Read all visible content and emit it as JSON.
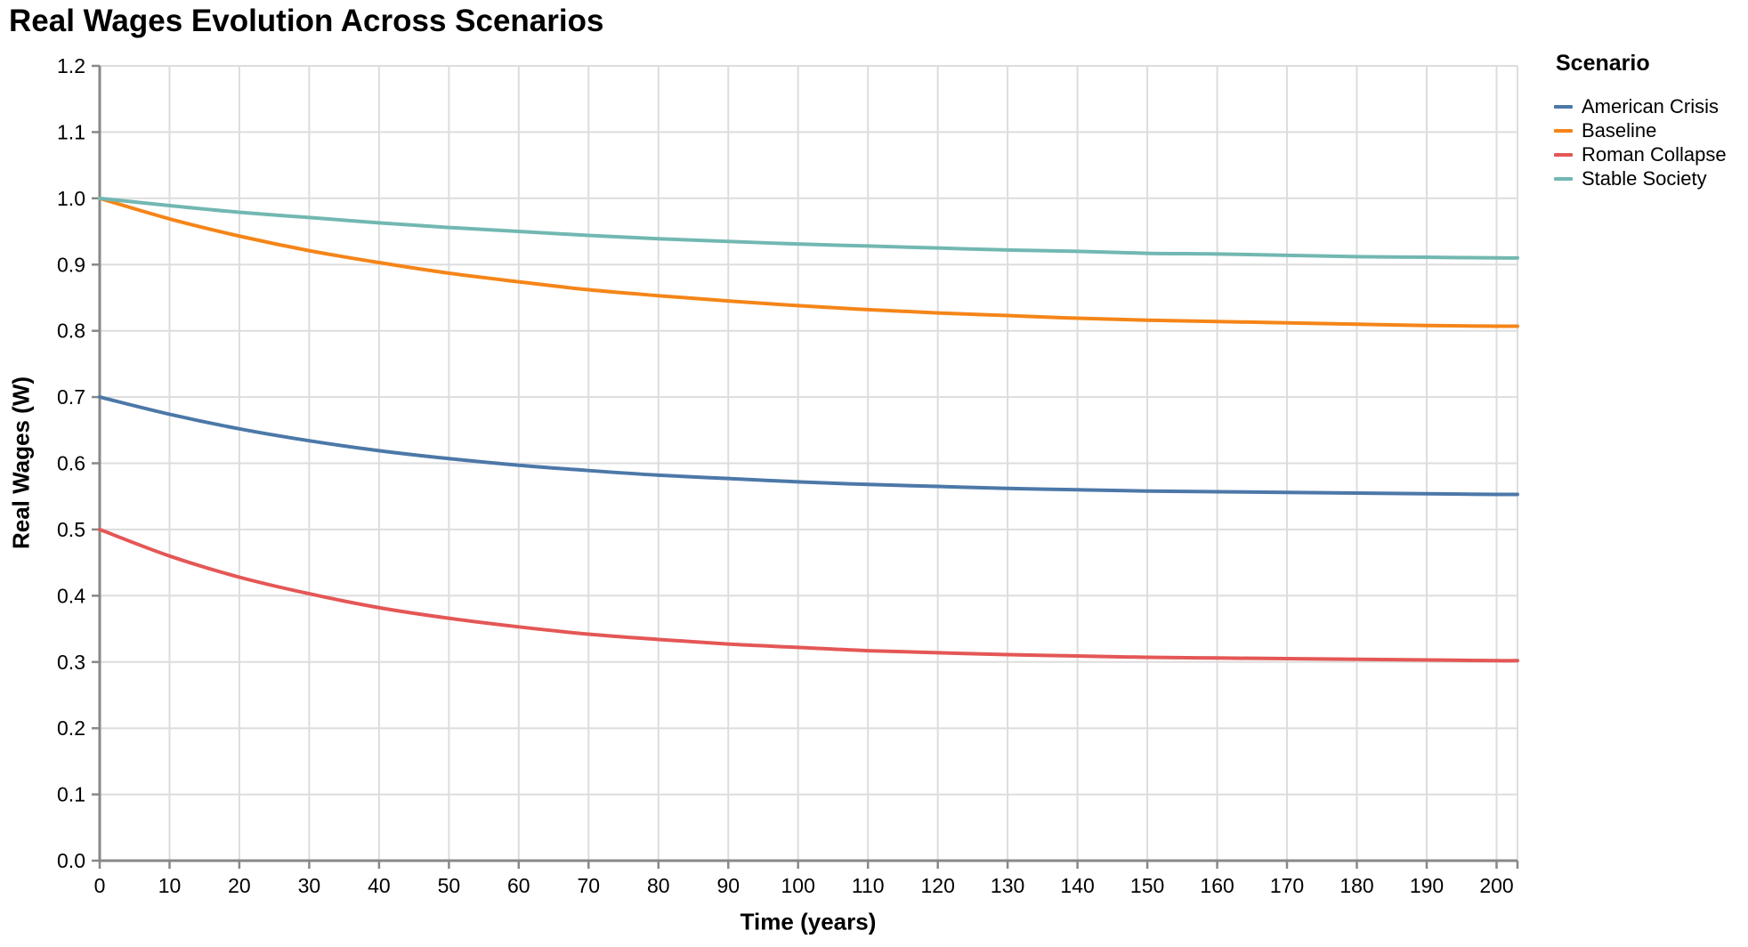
{
  "chart_data": {
    "type": "line",
    "title": "Real Wages Evolution Across Scenarios",
    "xlabel": "Time (years)",
    "ylabel": "Real Wages (W)",
    "legend_title": "Scenario",
    "legend_position": "right-top",
    "grid": true,
    "xlim": [
      0,
      203
    ],
    "ylim": [
      0,
      1.2
    ],
    "x_ticks": [
      0,
      10,
      20,
      30,
      40,
      50,
      60,
      70,
      80,
      90,
      100,
      110,
      120,
      130,
      140,
      150,
      160,
      170,
      180,
      190,
      200
    ],
    "y_ticks": [
      0.0,
      0.1,
      0.2,
      0.3,
      0.4,
      0.5,
      0.6,
      0.7,
      0.8,
      0.9,
      1.0,
      1.1,
      1.2
    ],
    "x": [
      0,
      10,
      20,
      30,
      40,
      50,
      60,
      70,
      80,
      90,
      100,
      110,
      120,
      130,
      140,
      150,
      160,
      170,
      180,
      190,
      200
    ],
    "series": [
      {
        "name": "American Crisis",
        "color": "#4c78a8",
        "values": [
          0.7,
          0.674,
          0.652,
          0.634,
          0.619,
          0.607,
          0.597,
          0.589,
          0.582,
          0.577,
          0.572,
          0.568,
          0.565,
          0.562,
          0.56,
          0.558,
          0.557,
          0.556,
          0.555,
          0.554,
          0.553
        ]
      },
      {
        "name": "Baseline",
        "color": "#f58518",
        "values": [
          1.0,
          0.969,
          0.943,
          0.921,
          0.903,
          0.887,
          0.874,
          0.862,
          0.853,
          0.845,
          0.838,
          0.832,
          0.827,
          0.823,
          0.819,
          0.816,
          0.814,
          0.812,
          0.81,
          0.808,
          0.807
        ]
      },
      {
        "name": "Roman Collapse",
        "color": "#e45756",
        "values": [
          0.5,
          0.46,
          0.428,
          0.403,
          0.382,
          0.366,
          0.353,
          0.342,
          0.334,
          0.327,
          0.322,
          0.317,
          0.314,
          0.311,
          0.309,
          0.307,
          0.306,
          0.305,
          0.304,
          0.303,
          0.302
        ]
      },
      {
        "name": "Stable Society",
        "color": "#72b7b2",
        "values": [
          1.0,
          0.989,
          0.979,
          0.971,
          0.963,
          0.956,
          0.95,
          0.944,
          0.939,
          0.935,
          0.931,
          0.928,
          0.925,
          0.922,
          0.92,
          0.917,
          0.916,
          0.914,
          0.912,
          0.911,
          0.91
        ]
      }
    ],
    "colors": {
      "grid": "#dddddd",
      "axis": "#888888",
      "text": "#000000",
      "background": "#ffffff"
    }
  }
}
